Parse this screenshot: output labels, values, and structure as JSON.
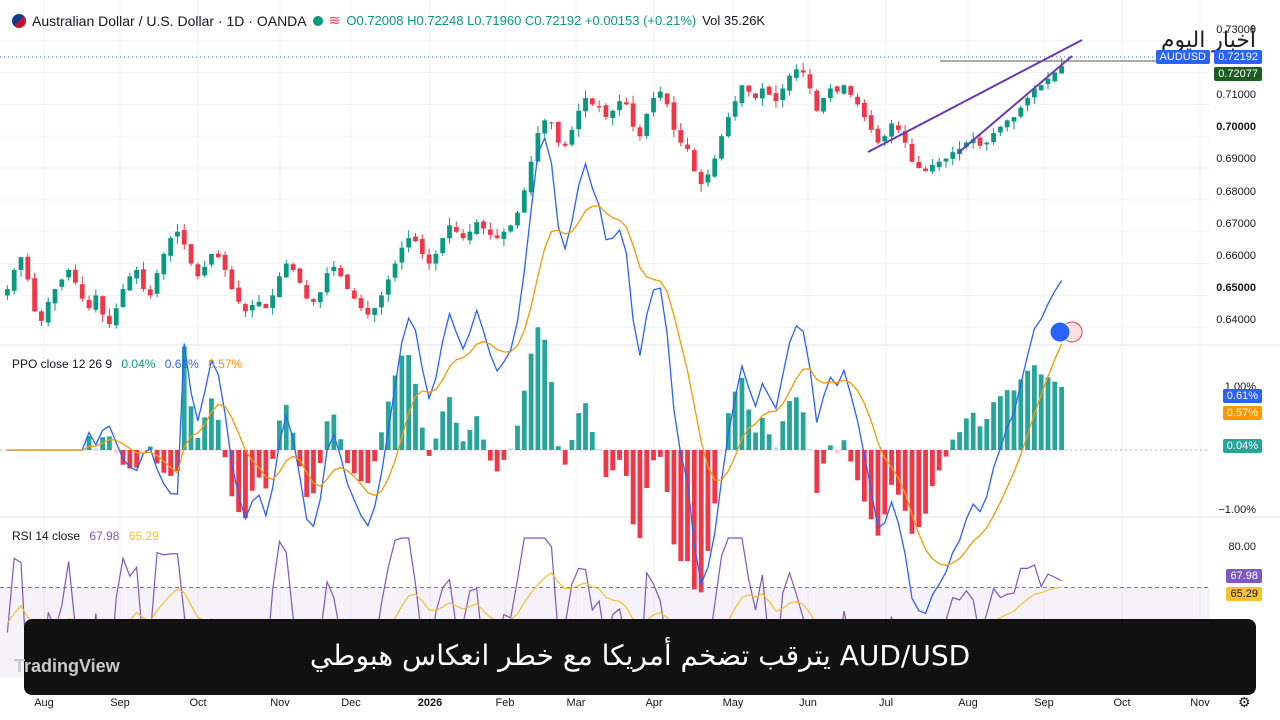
{
  "header": {
    "symbol": "Australian Dollar / U.S. Dollar · 1D · OANDA",
    "ohlc": "O0.72008 H0.72248 L0.71960 C0.72192 +0.00153 (+0.21%)",
    "vol": "Vol 35.26K"
  },
  "price_axis": {
    "ticks": [
      "0.73000",
      "0.71000",
      "0.70000",
      "0.69000",
      "0.68000",
      "0.67000",
      "0.66000",
      "0.65000",
      "0.64000"
    ],
    "symbol_tag": "AUDUSD",
    "last_price": "0.72192",
    "prev_tag": "0.72077"
  },
  "ppo": {
    "label": "PPO close 12 26 9",
    "v1": "0.04%",
    "v2": "0.61%",
    "v3": "0.57%",
    "axis_top": "1.00%",
    "axis_bottom": "−1.00%",
    "tag_ppo": "0.61%",
    "tag_signal": "0.57%",
    "tag_hist": "0.04%"
  },
  "rsi": {
    "label": "RSI 14 close",
    "v1": "67.98",
    "v2": "65.29",
    "axis_top": "80.00",
    "tag_rsi": "67.98",
    "tag_ma": "65.29"
  },
  "x_axis": [
    "Aug",
    "Sep",
    "Oct",
    "Nov",
    "Dec",
    "2026",
    "Feb",
    "Mar",
    "Apr",
    "May",
    "Jun",
    "Jul",
    "Aug",
    "Sep",
    "Oct",
    "Nov"
  ],
  "banner": {
    "text": "AUD/USD يترقب تضخم أمريكا مع خطر انعكاس هبوطي"
  },
  "watermark": "TradingView",
  "logo": "أخبار اليوم",
  "colors": {
    "up": "#089981",
    "down": "#f23645",
    "ppo": "#2962ff",
    "signal": "#ff9800",
    "rsi": "#7e57c2",
    "rsi_ma": "#fbc02d",
    "wedge": "#673ab7"
  },
  "chart_data": {
    "type": "candlestick",
    "title": "Australian Dollar / U.S. Dollar · 1D · OANDA",
    "ylim": [
      0.636,
      0.7365
    ],
    "x_months": [
      "Aug",
      "Sep",
      "Oct",
      "Nov",
      "Dec",
      "2026",
      "Feb",
      "Mar",
      "Apr",
      "May",
      "Jun",
      "Jul",
      "Aug",
      "Sep",
      "Oct",
      "Nov"
    ],
    "close_path": [
      0.652,
      0.658,
      0.662,
      0.655,
      0.645,
      0.642,
      0.648,
      0.652,
      0.655,
      0.658,
      0.654,
      0.649,
      0.646,
      0.65,
      0.644,
      0.641,
      0.646,
      0.652,
      0.656,
      0.658,
      0.652,
      0.65,
      0.657,
      0.663,
      0.668,
      0.67,
      0.666,
      0.66,
      0.656,
      0.659,
      0.663,
      0.662,
      0.658,
      0.652,
      0.648,
      0.645,
      0.647,
      0.648,
      0.646,
      0.65,
      0.656,
      0.66,
      0.658,
      0.654,
      0.649,
      0.648,
      0.651,
      0.657,
      0.659,
      0.656,
      0.652,
      0.649,
      0.646,
      0.644,
      0.646,
      0.65,
      0.655,
      0.66,
      0.665,
      0.668,
      0.667,
      0.663,
      0.66,
      0.663,
      0.668,
      0.672,
      0.67,
      0.668,
      0.67,
      0.673,
      0.671,
      0.669,
      0.668,
      0.67,
      0.672,
      0.676,
      0.683,
      0.692,
      0.701,
      0.705,
      0.704,
      0.698,
      0.697,
      0.702,
      0.708,
      0.712,
      0.71,
      0.709,
      0.706,
      0.708,
      0.711,
      0.71,
      0.703,
      0.7,
      0.707,
      0.712,
      0.714,
      0.71,
      0.702,
      0.698,
      0.696,
      0.689,
      0.685,
      0.688,
      0.693,
      0.7,
      0.706,
      0.711,
      0.716,
      0.714,
      0.712,
      0.715,
      0.713,
      0.711,
      0.715,
      0.719,
      0.721,
      0.72,
      0.715,
      0.708,
      0.712,
      0.715,
      0.714,
      0.716,
      0.713,
      0.71,
      0.706,
      0.702,
      0.698,
      0.7,
      0.704,
      0.702,
      0.698,
      0.692,
      0.69,
      0.689,
      0.691,
      0.692,
      0.693,
      0.695,
      0.696,
      0.698,
      0.699,
      0.697,
      0.698,
      0.701,
      0.703,
      0.705,
      0.706,
      0.709,
      0.712,
      0.715,
      0.716,
      0.718,
      0.72,
      0.722
    ],
    "wedge_upper": [
      [
        0.6926,
        0.7235
      ]
    ],
    "wedge_lower": [
      [
        0.6926,
        0.7235
      ]
    ],
    "ppo_panel": {
      "ppo": "0.61%",
      "signal": "0.57%",
      "histogram": "0.04%",
      "range": [
        "−1.00%",
        "1.00%"
      ]
    },
    "rsi_panel": {
      "rsi": 67.98,
      "ma": 65.29,
      "overbought": 70,
      "axis_top": 80
    }
  }
}
